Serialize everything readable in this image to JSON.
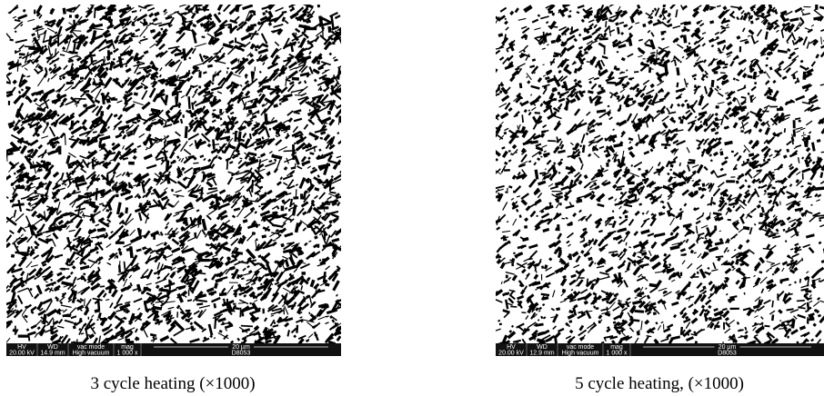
{
  "panels": [
    {
      "caption": "3 cycle heating (×1000)",
      "databar": {
        "labels": [
          "HV",
          "WD",
          "vac mode",
          "mag"
        ],
        "values": [
          "20.00 kV",
          "14.9 mm",
          "High vacuum",
          "1 000 x"
        ],
        "scale": "20 µm",
        "id": "D8053"
      }
    },
    {
      "caption": "5 cycle heating, (×1000)",
      "databar": {
        "labels": [
          "HV",
          "WD",
          "vac mode",
          "mag"
        ],
        "values": [
          "20.00 kV",
          "12.9 mm",
          "High vacuum",
          "1 000 x"
        ],
        "scale": "20 µm",
        "id": "D8053"
      }
    }
  ]
}
